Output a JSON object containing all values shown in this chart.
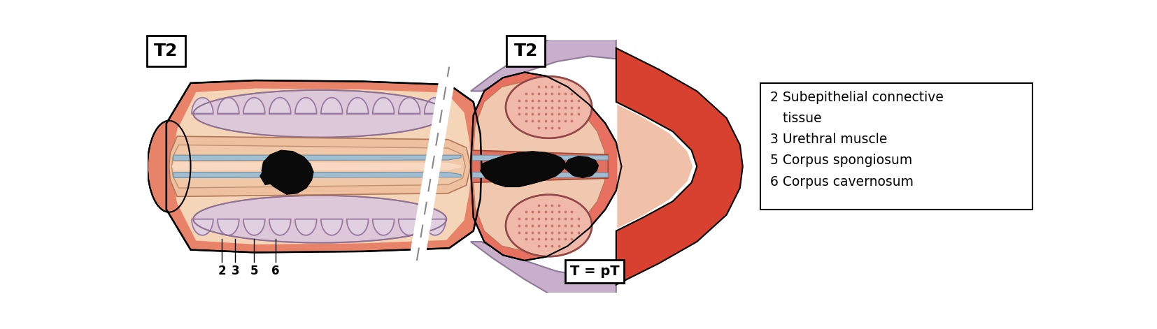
{
  "title_left": "T2",
  "title_right": "T2",
  "label_bottom": "T = pT",
  "layer_labels": [
    "2",
    "3",
    "5",
    "6"
  ],
  "colors": {
    "outer_skin": "#E8836A",
    "inner_peach": "#F5D5B8",
    "corpus_cav_fill": "#E8C8C0",
    "corpus_cav_border": "#C09090",
    "corpus_spong_fill": "#F0C8B0",
    "blue_band": "#A0BED0",
    "blue_border": "#7090A8",
    "chamber_fill": "#DCC8D8",
    "chamber_border": "#A890A8",
    "tumor_black": "#0A0A0A",
    "right_red": "#E05040",
    "right_red_outer": "#D04030",
    "right_inner_peach": "#F0C0A8",
    "right_cav_fill": "#F0B0A0",
    "wing_fill": "#C8B0C8",
    "wing_border": "#907890",
    "white": "#FFFFFF",
    "background": "#FFFFFF",
    "black": "#000000"
  }
}
